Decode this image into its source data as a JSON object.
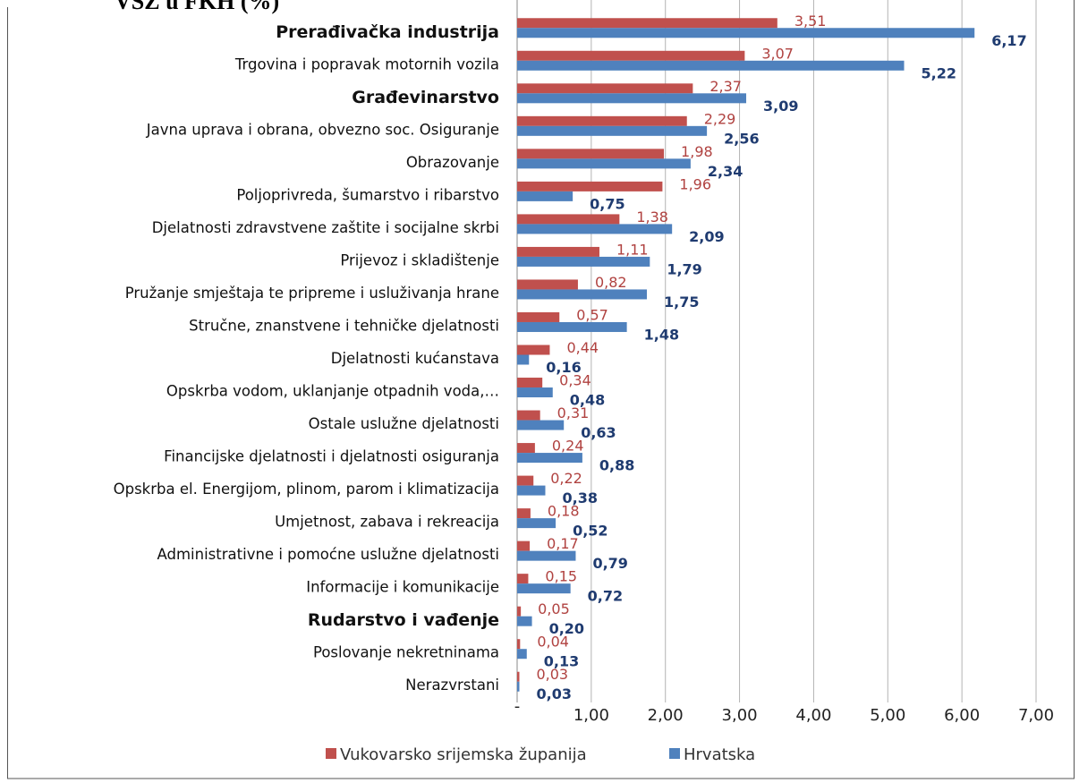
{
  "chart_data": {
    "type": "hbar",
    "title": "VSŽ u FKH (%)",
    "categories": [
      "Prerađivačka industrija",
      "Trgovina i popravak motornih vozila",
      "Građevinarstvo",
      "Javna uprava i obrana,  obvezno soc. Osiguranje",
      "Obrazovanje",
      "Poljoprivreda, šumarstvo i ribarstvo",
      "Djelatnosti zdravstvene zaštite i socijalne skrbi",
      "Prijevoz i skladištenje",
      "Pružanje smještaja te pripreme i usluživanja hrane",
      "Stručne, znanstvene i tehničke djelatnosti",
      "Djelatnosti kućanstava",
      "Opskrba vodom, uklanjanje otpadnih voda,…",
      "Ostale uslužne djelatnosti",
      "Financijske djelatnosti i djelatnosti osiguranja",
      "Opskrba el. Energijom, plinom, parom i klimatizacija",
      "Umjetnost, zabava i rekreacija",
      "Administrativne i pomoćne uslužne djelatnosti",
      "Informacije i komunikacije",
      "Rudarstvo i vađenje",
      "Poslovanje nekretninama",
      "Nerazvrstani"
    ],
    "bold_categories": [
      0,
      2,
      18
    ],
    "series": [
      {
        "name": "Vukovarsko srijemska županija",
        "color": "#c0504d",
        "label_color": "#b04240",
        "values": [
          3.51,
          3.07,
          2.37,
          2.29,
          1.98,
          1.96,
          1.38,
          1.11,
          0.82,
          0.57,
          0.44,
          0.34,
          0.31,
          0.24,
          0.22,
          0.18,
          0.17,
          0.15,
          0.05,
          0.04,
          0.03
        ],
        "value_labels": [
          "3,51",
          "3,07",
          "2,37",
          "2,29",
          "1,98",
          "1,96",
          "1,38",
          "1,11",
          "0,82",
          "0,57",
          "0,44",
          "0,34",
          "0,31",
          "0,24",
          "0,22",
          "0,18",
          "0,17",
          "0,15",
          "0,05",
          "0,04",
          "0,03"
        ]
      },
      {
        "name": "Hrvatska",
        "color": "#4f81bd",
        "label_color": "#1f3b70",
        "values": [
          6.17,
          5.22,
          3.09,
          2.56,
          2.34,
          0.75,
          2.09,
          1.79,
          1.75,
          1.48,
          0.16,
          0.48,
          0.63,
          0.88,
          0.38,
          0.52,
          0.79,
          0.72,
          0.2,
          0.13,
          0.03
        ],
        "value_labels": [
          "6,17",
          "5,22",
          "3,09",
          "2,56",
          "2,34",
          "0,75",
          "2,09",
          "1,79",
          "1,75",
          "1,48",
          "0,16",
          "0,48",
          "0,63",
          "0,88",
          "0,38",
          "0,52",
          "0,79",
          "0,72",
          "0,20",
          "0,13",
          "0,03"
        ]
      }
    ],
    "xlim": [
      0,
      7
    ],
    "xticks": [
      {
        "value": 0,
        "label": "-"
      },
      {
        "value": 1,
        "label": "1,00"
      },
      {
        "value": 2,
        "label": "2,00"
      },
      {
        "value": 3,
        "label": "3,00"
      },
      {
        "value": 4,
        "label": "4,00"
      },
      {
        "value": 5,
        "label": "5,00"
      },
      {
        "value": 6,
        "label": "6,00"
      },
      {
        "value": 7,
        "label": "7,00"
      }
    ],
    "grid": true,
    "legend": "bottom"
  }
}
